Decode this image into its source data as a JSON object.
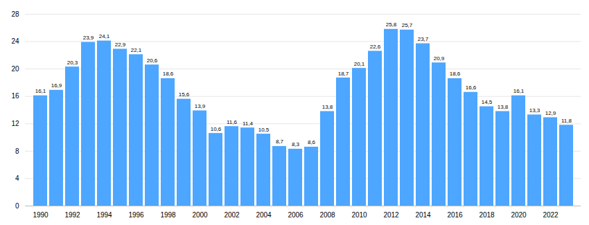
{
  "chart_data": {
    "type": "bar",
    "categories": [
      "1990",
      null,
      "1992",
      null,
      "1994",
      null,
      "1996",
      null,
      "1998",
      null,
      "2000",
      null,
      "2002",
      null,
      "2004",
      null,
      "2006",
      null,
      "2008",
      null,
      "2010",
      null,
      "2012",
      null,
      "2014",
      null,
      "2016",
      null,
      "2018",
      null,
      "2020",
      null,
      "2022",
      null
    ],
    "values": [
      16.1,
      16.9,
      20.3,
      23.9,
      24.1,
      22.9,
      22.1,
      20.6,
      18.6,
      15.6,
      13.9,
      10.6,
      11.6,
      11.4,
      10.5,
      8.7,
      8.3,
      8.6,
      13.8,
      18.7,
      20.1,
      22.6,
      25.8,
      25.7,
      23.7,
      20.9,
      18.6,
      16.6,
      14.5,
      13.8,
      16.1,
      13.3,
      12.9,
      11.8
    ],
    "value_labels": [
      "16,1",
      "16,9",
      "20,3",
      "23,9",
      "24,1",
      "22,9",
      "22,1",
      "20,6",
      "18,6",
      "15,6",
      "13,9",
      "10,6",
      "11,6",
      "11,4",
      "10,5",
      "8,7",
      "8,3",
      "8,6",
      "13,8",
      "18,7",
      "20,1",
      "22,6",
      "25,8",
      "25,7",
      "23,7",
      "20,9",
      "18,6",
      "16,6",
      "14,5",
      "13,8",
      "16,1",
      "13,3",
      "12,9",
      "11,8"
    ],
    "color": "#4da6ff",
    "ylim": [
      0,
      28
    ],
    "yticks": [
      0,
      4,
      8,
      12,
      16,
      20,
      24,
      28
    ],
    "grid": true,
    "data_labels": true
  }
}
